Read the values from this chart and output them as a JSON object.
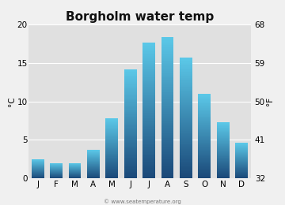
{
  "title": "Borgholm water temp",
  "months": [
    "J",
    "F",
    "M",
    "A",
    "M",
    "J",
    "J",
    "A",
    "S",
    "O",
    "N",
    "D"
  ],
  "temps_c": [
    2.5,
    2.0,
    2.0,
    3.7,
    7.8,
    14.2,
    17.7,
    18.4,
    15.7,
    11.0,
    7.3,
    4.6
  ],
  "ylim_c": [
    0,
    20
  ],
  "yticks_c": [
    0,
    5,
    10,
    15,
    20
  ],
  "yticks_f": [
    32,
    41,
    50,
    59,
    68
  ],
  "ylabel_left": "°C",
  "ylabel_right": "°F",
  "bar_color_top": "#5bc8e8",
  "bar_color_bottom": "#1a4878",
  "bg_color": "#e0e0e0",
  "figure_bg": "#f0f0f0",
  "watermark": "© www.seatemperature.org",
  "title_fontsize": 11,
  "axis_fontsize": 7.5,
  "label_fontsize": 7.5,
  "bar_width": 0.68
}
